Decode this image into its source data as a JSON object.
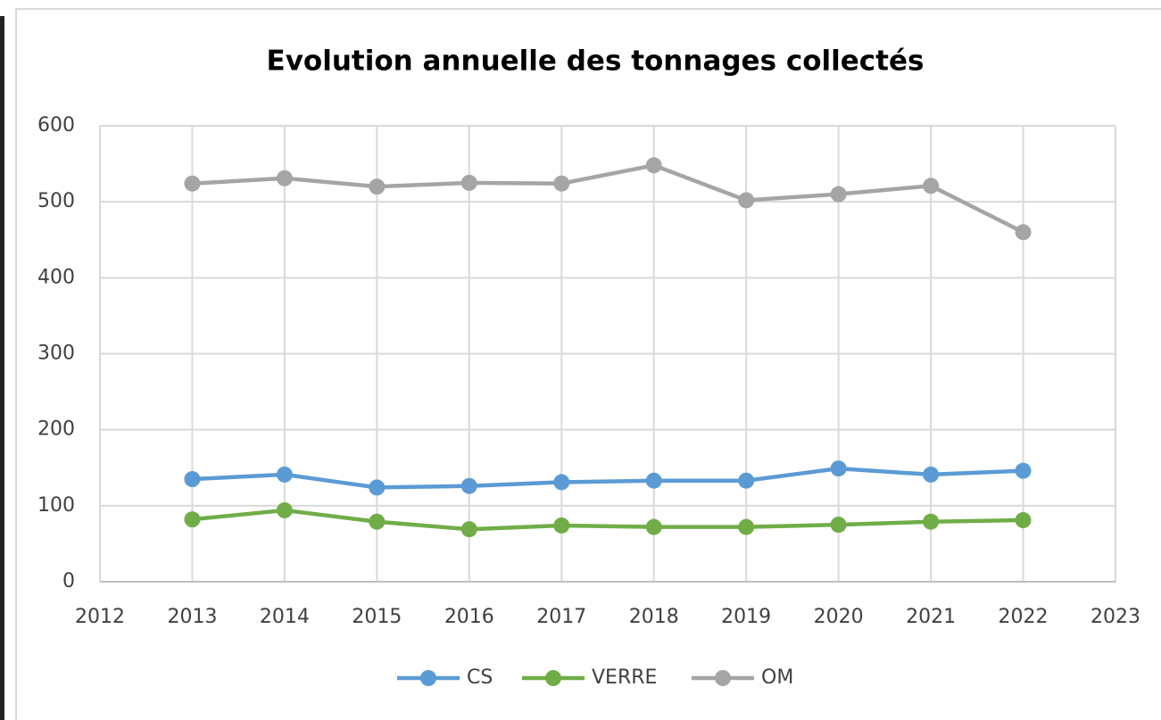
{
  "chart_data": {
    "type": "line",
    "title": "Evolution annuelle des tonnages collectés",
    "x": [
      2013,
      2014,
      2015,
      2016,
      2017,
      2018,
      2019,
      2020,
      2021,
      2022
    ],
    "series": [
      {
        "name": "CS",
        "color": "#5b9bd5",
        "values": [
          135,
          141,
          124,
          126,
          131,
          133,
          133,
          149,
          141,
          146
        ]
      },
      {
        "name": "VERRE",
        "color": "#70ad47",
        "values": [
          82,
          94,
          79,
          69,
          74,
          72,
          72,
          75,
          79,
          81
        ]
      },
      {
        "name": "OM",
        "color": "#a5a5a5",
        "values": [
          524,
          531,
          520,
          525,
          524,
          548,
          502,
          510,
          521,
          460
        ]
      }
    ],
    "xlim": [
      2012,
      2023
    ],
    "xticks": [
      2012,
      2013,
      2014,
      2015,
      2016,
      2017,
      2018,
      2019,
      2020,
      2021,
      2022,
      2023
    ],
    "ylim": [
      0,
      600
    ],
    "yticks": [
      0,
      100,
      200,
      300,
      400,
      500,
      600
    ],
    "grid": true,
    "legend": "bottom"
  }
}
